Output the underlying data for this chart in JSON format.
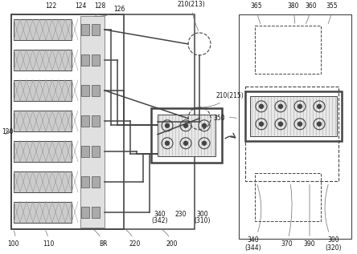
{
  "lc": "#444444",
  "fig_bg": "#ffffff",
  "gray_hatch": "#cccccc",
  "gray_pad": "#aaaaaa",
  "strip_bg": "#e0e0e0",
  "pkg_bg": "#e8e8e8",
  "stripe_color": "#c0c0c0",
  "dot_color": "#333333",
  "label_fs": 5.5,
  "small_fs": 5.0,
  "lw_main": 0.9,
  "lw_bold": 1.8,
  "lw_wire": 1.0,
  "lw_thin": 0.6
}
